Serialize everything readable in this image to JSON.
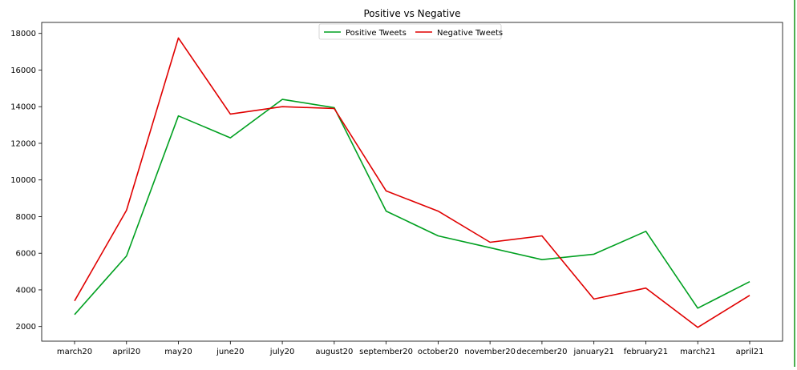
{
  "chart_data": {
    "type": "line",
    "title": "Positive vs Negative",
    "xlabel": "",
    "ylabel": "",
    "categories": [
      "march20",
      "april20",
      "may20",
      "june20",
      "july20",
      "august20",
      "september20",
      "october20",
      "november20",
      "december20",
      "january21",
      "february21",
      "march21",
      "april21"
    ],
    "yticks": [
      2000,
      4000,
      6000,
      8000,
      10000,
      12000,
      14000,
      16000,
      18000
    ],
    "ylim": [
      1200,
      18600
    ],
    "grid": false,
    "legend_position": "top-center",
    "series": [
      {
        "name": "Positive Tweets",
        "color": "#00a020",
        "values": [
          2650,
          5850,
          13500,
          12300,
          14400,
          13950,
          8300,
          6950,
          6300,
          5650,
          5950,
          7200,
          3000,
          4450
        ]
      },
      {
        "name": "Negative Tweets",
        "color": "#e00000",
        "values": [
          3400,
          8350,
          17750,
          13600,
          14000,
          13900,
          9400,
          8300,
          6600,
          6950,
          3500,
          4100,
          1950,
          3700
        ]
      }
    ]
  },
  "notebook": {
    "cell_edge_color": "#4caf50"
  }
}
